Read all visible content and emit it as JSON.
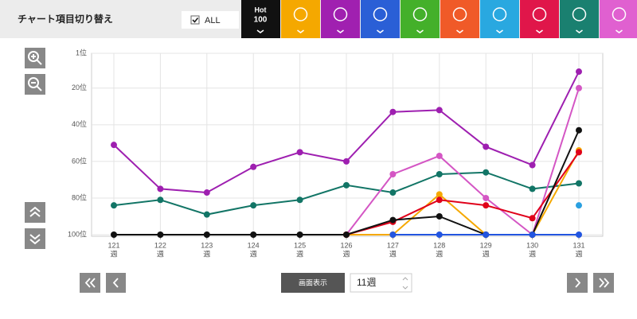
{
  "toolbar": {
    "title": "チャート項目切り替え",
    "all_label": "ALL",
    "hot100_lines": [
      "Hot",
      "100"
    ]
  },
  "chart_data": {
    "type": "line",
    "categories": [
      "121",
      "122",
      "123",
      "124",
      "125",
      "126",
      "127",
      "128",
      "129",
      "130",
      "131"
    ],
    "category_suffix": "週",
    "ylim": [
      100,
      1
    ],
    "yticks": [
      {
        "value": 1,
        "label": "1位"
      },
      {
        "value": 20,
        "label": "20位"
      },
      {
        "value": 40,
        "label": "40位"
      },
      {
        "value": 60,
        "label": "60位"
      },
      {
        "value": 80,
        "label": "80位"
      },
      {
        "value": 100,
        "label": "100位"
      }
    ],
    "grid": true,
    "series": [
      {
        "color": "#127566",
        "values": [
          84,
          81,
          89,
          84,
          81,
          73,
          77,
          67,
          66,
          75,
          72
        ]
      },
      {
        "color": "#9e1fb0",
        "values": [
          51,
          75,
          77,
          63,
          55,
          60,
          33,
          32,
          52,
          62,
          11
        ]
      },
      {
        "color": "#d456c4",
        "values": [
          null,
          null,
          null,
          null,
          null,
          100,
          67,
          57,
          80,
          100,
          20
        ]
      },
      {
        "color": "#f5a800",
        "values": [
          null,
          null,
          null,
          null,
          null,
          100,
          100,
          78,
          100,
          100,
          54
        ]
      },
      {
        "color": "#e0001a",
        "values": [
          null,
          null,
          null,
          null,
          null,
          100,
          93,
          81,
          84,
          91,
          55
        ]
      },
      {
        "color": "#111111",
        "values": [
          100,
          100,
          100,
          100,
          100,
          100,
          92,
          90,
          100,
          100,
          43
        ]
      },
      {
        "color": "#2255e0",
        "values": [
          null,
          null,
          null,
          null,
          null,
          null,
          100,
          100,
          100,
          100,
          100
        ]
      },
      {
        "color": "#2aa0e0",
        "values": [
          null,
          null,
          null,
          null,
          null,
          null,
          null,
          null,
          null,
          null,
          84
        ]
      }
    ]
  },
  "controls": {
    "display_button": "画面表示",
    "weeks_select": "11週"
  }
}
